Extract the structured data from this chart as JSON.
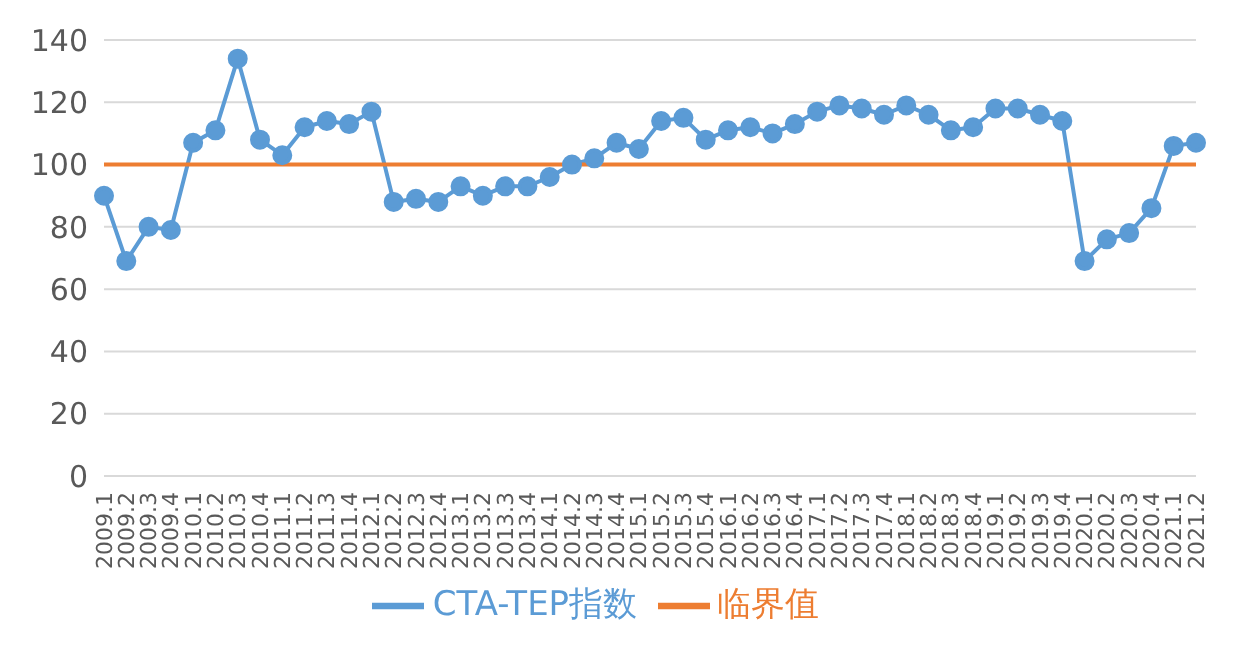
{
  "chart_data": {
    "type": "line",
    "categories": [
      "2009.1",
      "2009.2",
      "2009.3",
      "2009.4",
      "2010.1",
      "2010.2",
      "2010.3",
      "2010.4",
      "2011.1",
      "2011.2",
      "2011.3",
      "2011.4",
      "2012.1",
      "2012.2",
      "2012.3",
      "2012.4",
      "2013.1",
      "2013.2",
      "2013.3",
      "2013.4",
      "2014.1",
      "2014.2",
      "2014.3",
      "2014.4",
      "2015.1",
      "2015.2",
      "2015.3",
      "2015.4",
      "2016.1",
      "2016.2",
      "2016.3",
      "2016.4",
      "2017.1",
      "2017.2",
      "2017.3",
      "2017.4",
      "2018.1",
      "2018.2",
      "2018.3",
      "2018.4",
      "2019.1",
      "2019.2",
      "2019.3",
      "2019.4",
      "2020.1",
      "2020.2",
      "2020.3",
      "2020.4",
      "2021.1",
      "2021.2"
    ],
    "series": [
      {
        "name": "CTA-TEP指数",
        "color": "#5b9bd5",
        "marker": "circle",
        "values": [
          90,
          69,
          80,
          79,
          107,
          111,
          134,
          108,
          103,
          112,
          114,
          113,
          117,
          88,
          89,
          88,
          93,
          90,
          93,
          93,
          96,
          100,
          102,
          107,
          105,
          114,
          115,
          108,
          111,
          112,
          110,
          113,
          117,
          119,
          118,
          116,
          119,
          116,
          111,
          112,
          118,
          118,
          116,
          114,
          69,
          76,
          78,
          86,
          106,
          107
        ]
      },
      {
        "name": "临界值",
        "color": "#ed7d31",
        "marker": "none",
        "values": [
          100,
          100,
          100,
          100,
          100,
          100,
          100,
          100,
          100,
          100,
          100,
          100,
          100,
          100,
          100,
          100,
          100,
          100,
          100,
          100,
          100,
          100,
          100,
          100,
          100,
          100,
          100,
          100,
          100,
          100,
          100,
          100,
          100,
          100,
          100,
          100,
          100,
          100,
          100,
          100,
          100,
          100,
          100,
          100,
          100,
          100,
          100,
          100,
          100,
          100
        ]
      }
    ],
    "ylim": [
      0,
      140
    ],
    "yticks": [
      0,
      20,
      40,
      60,
      80,
      100,
      120,
      140
    ],
    "grid": "y",
    "legend": "bottom"
  }
}
